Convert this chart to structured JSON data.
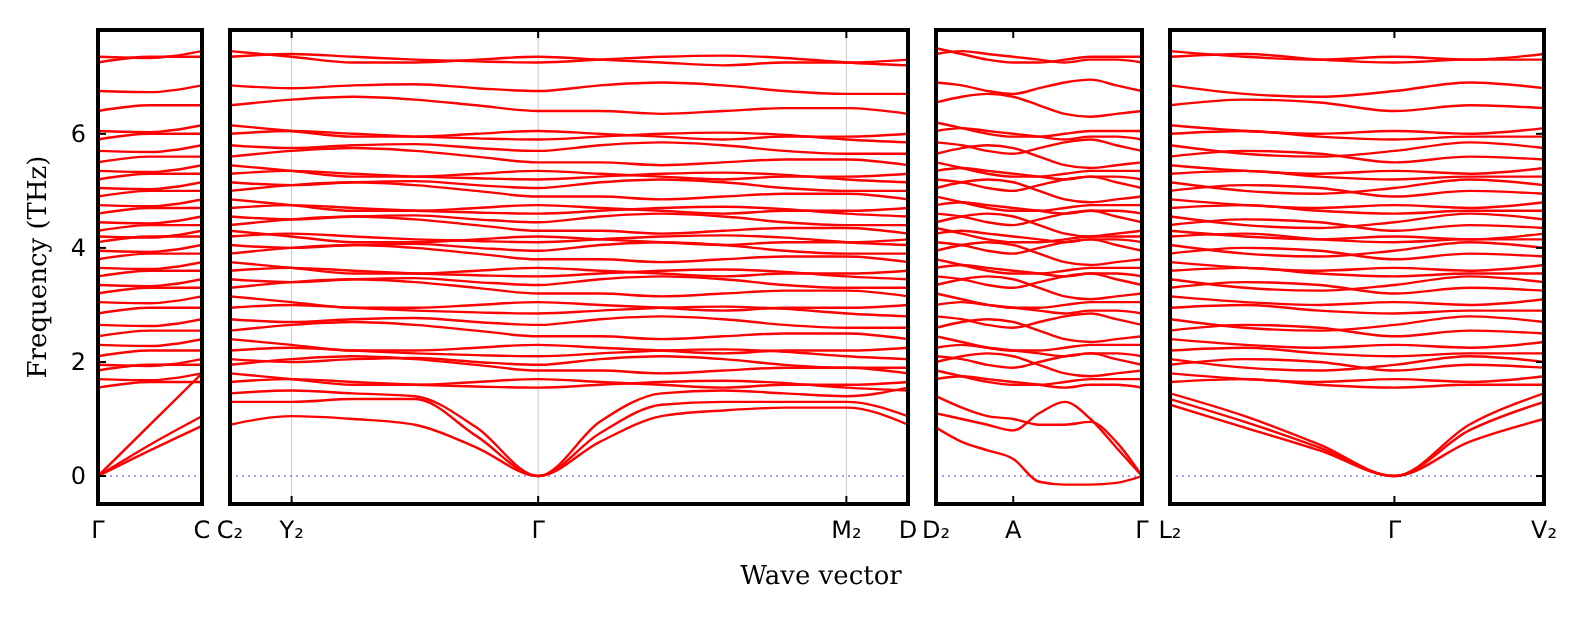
{
  "chart_data": [
    {
      "type": "line",
      "ylabel": "Frequency (THz)",
      "color": "#ff0000",
      "line_style": "solid",
      "ylim": [
        -0.49,
        7.82
      ],
      "yticks": [
        0,
        2,
        4,
        6
      ],
      "categories": [
        "Γ",
        null,
        "C"
      ],
      "ref_lines": [
        {
          "axis": "y",
          "value": 0,
          "color": "#8080ff",
          "line_style": "dotted"
        }
      ],
      "series": [
        {
          "values": [
            0,
            0.45,
            0.88
          ]
        },
        {
          "values": [
            0,
            0.55,
            1.05
          ]
        },
        {
          "values": [
            0,
            0.9,
            1.8
          ]
        },
        {
          "values": [
            1.55,
            1.65,
            1.65
          ]
        },
        {
          "values": [
            1.7,
            1.68,
            1.8
          ]
        },
        {
          "values": [
            1.85,
            1.95,
            1.95
          ]
        },
        {
          "values": [
            1.95,
            1.93,
            2.05
          ]
        },
        {
          "values": [
            2.1,
            2.2,
            2.2
          ]
        },
        {
          "values": [
            2.3,
            2.28,
            2.4
          ]
        },
        {
          "values": [
            2.45,
            2.55,
            2.55
          ]
        },
        {
          "values": [
            2.65,
            2.63,
            2.75
          ]
        },
        {
          "values": [
            2.85,
            2.95,
            2.95
          ]
        },
        {
          "values": [
            3.05,
            3.03,
            3.15
          ]
        },
        {
          "values": [
            3.2,
            3.3,
            3.3
          ]
        },
        {
          "values": [
            3.35,
            3.33,
            3.45
          ]
        },
        {
          "values": [
            3.5,
            3.6,
            3.6
          ]
        },
        {
          "values": [
            3.65,
            3.63,
            3.75
          ]
        },
        {
          "values": [
            3.8,
            3.9,
            3.9
          ]
        },
        {
          "values": [
            3.95,
            3.93,
            4.05
          ]
        },
        {
          "values": [
            4.1,
            4.2,
            4.2
          ]
        },
        {
          "values": [
            4.2,
            4.18,
            4.3
          ]
        },
        {
          "values": [
            4.3,
            4.4,
            4.4
          ]
        },
        {
          "values": [
            4.45,
            4.43,
            4.55
          ]
        },
        {
          "values": [
            4.6,
            4.7,
            4.7
          ]
        },
        {
          "values": [
            4.75,
            4.73,
            4.85
          ]
        },
        {
          "values": [
            4.9,
            5.0,
            5.0
          ]
        },
        {
          "values": [
            5.05,
            5.03,
            5.15
          ]
        },
        {
          "values": [
            5.2,
            5.3,
            5.3
          ]
        },
        {
          "values": [
            5.35,
            5.33,
            5.45
          ]
        },
        {
          "values": [
            5.5,
            5.6,
            5.6
          ]
        },
        {
          "values": [
            5.7,
            5.68,
            5.8
          ]
        },
        {
          "values": [
            5.9,
            6.0,
            6.0
          ]
        },
        {
          "values": [
            6.05,
            6.03,
            6.15
          ]
        },
        {
          "values": [
            6.4,
            6.5,
            6.5
          ]
        },
        {
          "values": [
            6.75,
            6.73,
            6.85
          ]
        },
        {
          "values": [
            7.25,
            7.35,
            7.35
          ]
        },
        {
          "values": [
            7.35,
            7.33,
            7.45
          ]
        }
      ]
    },
    {
      "type": "line",
      "xlabel": "Wave vector",
      "color": "#ff0000",
      "line_style": "solid",
      "grid": "x",
      "tick_labels": "x",
      "ylim": [
        -0.49,
        7.82
      ],
      "yticks": [
        0,
        2,
        4,
        6
      ],
      "categories": [
        "C₂",
        "Y₂",
        null,
        null,
        null,
        "Γ",
        null,
        null,
        null,
        null,
        "M₂",
        "D"
      ],
      "ref_lines": [
        {
          "axis": "y",
          "value": 0,
          "color": "#8080ff",
          "line_style": "dotted"
        }
      ],
      "series": [
        {
          "values": [
            0.9,
            1.05,
            1.0,
            0.9,
            0.5,
            0,
            0.6,
            1.05,
            1.15,
            1.2,
            1.2,
            0.9
          ]
        },
        {
          "values": [
            1.3,
            1.3,
            1.35,
            1.35,
            0.7,
            0,
            0.75,
            1.25,
            1.3,
            1.3,
            1.3,
            1.05
          ]
        },
        {
          "values": [
            1.45,
            1.5,
            1.45,
            1.4,
            0.85,
            0,
            0.95,
            1.45,
            1.5,
            1.45,
            1.4,
            1.55
          ]
        },
        {
          "values": [
            1.65,
            1.7,
            1.65,
            1.6,
            1.57,
            1.55,
            1.6,
            1.65,
            1.67,
            1.63,
            1.55,
            1.5
          ]
        },
        {
          "values": [
            1.8,
            1.7,
            1.6,
            1.6,
            1.65,
            1.7,
            1.65,
            1.6,
            1.55,
            1.6,
            1.6,
            1.65
          ]
        },
        {
          "values": [
            1.95,
            2.05,
            2.1,
            2.05,
            1.95,
            1.85,
            1.85,
            1.8,
            1.85,
            1.9,
            1.9,
            1.8
          ]
        },
        {
          "values": [
            2.05,
            2.0,
            2.05,
            2.07,
            2.0,
            1.95,
            2.05,
            2.1,
            2.05,
            1.95,
            1.9,
            1.9
          ]
        },
        {
          "values": [
            2.2,
            2.25,
            2.2,
            2.15,
            2.12,
            2.1,
            2.15,
            2.2,
            2.22,
            2.18,
            2.1,
            2.05
          ]
        },
        {
          "values": [
            2.4,
            2.3,
            2.2,
            2.2,
            2.25,
            2.3,
            2.25,
            2.2,
            2.15,
            2.2,
            2.2,
            2.25
          ]
        },
        {
          "values": [
            2.55,
            2.65,
            2.7,
            2.65,
            2.55,
            2.45,
            2.45,
            2.4,
            2.45,
            2.5,
            2.5,
            2.4
          ]
        },
        {
          "values": [
            2.75,
            2.7,
            2.75,
            2.77,
            2.7,
            2.65,
            2.75,
            2.8,
            2.75,
            2.65,
            2.6,
            2.6
          ]
        },
        {
          "values": [
            2.95,
            3.0,
            2.95,
            2.9,
            2.87,
            2.85,
            2.9,
            2.95,
            2.97,
            2.93,
            2.85,
            2.8
          ]
        },
        {
          "values": [
            3.15,
            3.05,
            2.95,
            2.95,
            3.0,
            3.05,
            3.0,
            2.95,
            2.9,
            2.95,
            2.95,
            3.0
          ]
        },
        {
          "values": [
            3.3,
            3.4,
            3.45,
            3.4,
            3.3,
            3.2,
            3.2,
            3.15,
            3.2,
            3.25,
            3.25,
            3.15
          ]
        },
        {
          "values": [
            3.45,
            3.4,
            3.45,
            3.47,
            3.4,
            3.35,
            3.45,
            3.5,
            3.45,
            3.35,
            3.3,
            3.3
          ]
        },
        {
          "values": [
            3.6,
            3.65,
            3.6,
            3.55,
            3.52,
            3.5,
            3.55,
            3.6,
            3.62,
            3.58,
            3.5,
            3.45
          ]
        },
        {
          "values": [
            3.75,
            3.65,
            3.55,
            3.55,
            3.6,
            3.65,
            3.6,
            3.55,
            3.5,
            3.55,
            3.55,
            3.6
          ]
        },
        {
          "values": [
            3.9,
            4.0,
            4.05,
            4.0,
            3.9,
            3.8,
            3.8,
            3.75,
            3.8,
            3.85,
            3.85,
            3.75
          ]
        },
        {
          "values": [
            4.05,
            4.0,
            4.05,
            4.07,
            4.0,
            3.95,
            4.05,
            4.1,
            4.05,
            3.95,
            3.9,
            3.9
          ]
        },
        {
          "values": [
            4.2,
            4.25,
            4.2,
            4.15,
            4.12,
            4.1,
            4.15,
            4.2,
            4.22,
            4.18,
            4.1,
            4.05
          ]
        },
        {
          "values": [
            4.3,
            4.2,
            4.1,
            4.1,
            4.15,
            4.2,
            4.15,
            4.1,
            4.05,
            4.1,
            4.1,
            4.15
          ]
        },
        {
          "values": [
            4.4,
            4.5,
            4.55,
            4.5,
            4.4,
            4.3,
            4.3,
            4.25,
            4.3,
            4.35,
            4.35,
            4.25
          ]
        },
        {
          "values": [
            4.55,
            4.5,
            4.55,
            4.57,
            4.5,
            4.45,
            4.55,
            4.6,
            4.55,
            4.45,
            4.4,
            4.4
          ]
        },
        {
          "values": [
            4.7,
            4.75,
            4.7,
            4.65,
            4.62,
            4.6,
            4.65,
            4.7,
            4.72,
            4.68,
            4.6,
            4.55
          ]
        },
        {
          "values": [
            4.85,
            4.75,
            4.65,
            4.65,
            4.7,
            4.75,
            4.7,
            4.65,
            4.6,
            4.65,
            4.65,
            4.7
          ]
        },
        {
          "values": [
            5.0,
            5.1,
            5.15,
            5.1,
            5.0,
            4.9,
            4.9,
            4.85,
            4.9,
            4.95,
            4.95,
            4.85
          ]
        },
        {
          "values": [
            5.15,
            5.1,
            5.15,
            5.17,
            5.1,
            5.05,
            5.15,
            5.2,
            5.15,
            5.05,
            5.0,
            5.0
          ]
        },
        {
          "values": [
            5.3,
            5.35,
            5.3,
            5.25,
            5.22,
            5.2,
            5.25,
            5.3,
            5.32,
            5.28,
            5.2,
            5.15
          ]
        },
        {
          "values": [
            5.45,
            5.35,
            5.25,
            5.25,
            5.3,
            5.35,
            5.3,
            5.25,
            5.2,
            5.25,
            5.25,
            5.3
          ]
        },
        {
          "values": [
            5.6,
            5.7,
            5.75,
            5.7,
            5.6,
            5.5,
            5.5,
            5.45,
            5.5,
            5.55,
            5.55,
            5.45
          ]
        },
        {
          "values": [
            5.8,
            5.75,
            5.8,
            5.82,
            5.75,
            5.7,
            5.8,
            5.85,
            5.8,
            5.7,
            5.65,
            5.65
          ]
        },
        {
          "values": [
            6.0,
            6.05,
            6.0,
            5.95,
            5.92,
            5.9,
            5.95,
            6.0,
            6.02,
            5.98,
            5.9,
            5.85
          ]
        },
        {
          "values": [
            6.15,
            6.05,
            5.95,
            5.95,
            6.0,
            6.05,
            6.0,
            5.95,
            5.9,
            5.95,
            5.95,
            6.0
          ]
        },
        {
          "values": [
            6.5,
            6.6,
            6.65,
            6.6,
            6.5,
            6.4,
            6.4,
            6.35,
            6.4,
            6.45,
            6.45,
            6.35
          ]
        },
        {
          "values": [
            6.85,
            6.8,
            6.85,
            6.87,
            6.8,
            6.75,
            6.85,
            6.9,
            6.85,
            6.75,
            6.7,
            6.7
          ]
        },
        {
          "values": [
            7.35,
            7.4,
            7.35,
            7.3,
            7.27,
            7.25,
            7.3,
            7.35,
            7.37,
            7.33,
            7.25,
            7.2
          ]
        },
        {
          "values": [
            7.45,
            7.35,
            7.25,
            7.25,
            7.3,
            7.35,
            7.3,
            7.25,
            7.2,
            7.25,
            7.25,
            7.3
          ]
        }
      ]
    },
    {
      "type": "line",
      "color": "#ff0000",
      "line_style": "solid",
      "tick_labels": "x",
      "ylim": [
        -0.49,
        7.82
      ],
      "yticks": [
        0,
        2,
        4,
        6
      ],
      "categories": [
        "D₂",
        null,
        null,
        "A",
        null,
        null,
        null,
        null,
        "Γ"
      ],
      "ref_lines": [
        {
          "axis": "y",
          "value": 0,
          "color": "#8080ff",
          "line_style": "dotted"
        }
      ],
      "series": [
        {
          "values": [
            0.85,
            0.6,
            0.45,
            0.3,
            -0.1,
            -0.15,
            -0.15,
            -0.12,
            0
          ]
        },
        {
          "values": [
            1.1,
            1.0,
            0.9,
            0.8,
            1.1,
            1.3,
            1.0,
            0.5,
            0
          ]
        },
        {
          "values": [
            1.4,
            1.2,
            1.05,
            1.0,
            0.9,
            0.9,
            0.95,
            0.6,
            0
          ]
        },
        {
          "values": [
            1.7,
            1.75,
            1.7,
            1.65,
            1.6,
            1.55,
            1.6,
            1.6,
            1.55
          ]
        },
        {
          "values": [
            1.85,
            1.75,
            1.65,
            1.6,
            1.6,
            1.65,
            1.7,
            1.7,
            1.7
          ]
        },
        {
          "values": [
            2.0,
            2.1,
            2.15,
            2.1,
            1.95,
            1.8,
            1.75,
            1.8,
            1.85
          ]
        },
        {
          "values": [
            2.1,
            2.05,
            1.95,
            1.9,
            2.0,
            2.1,
            2.15,
            2.05,
            1.95
          ]
        },
        {
          "values": [
            2.25,
            2.3,
            2.25,
            2.2,
            2.15,
            2.1,
            2.15,
            2.15,
            2.1
          ]
        },
        {
          "values": [
            2.45,
            2.35,
            2.25,
            2.2,
            2.2,
            2.25,
            2.3,
            2.3,
            2.3
          ]
        },
        {
          "values": [
            2.6,
            2.7,
            2.75,
            2.7,
            2.55,
            2.4,
            2.35,
            2.4,
            2.45
          ]
        },
        {
          "values": [
            2.8,
            2.75,
            2.65,
            2.6,
            2.7,
            2.8,
            2.85,
            2.75,
            2.65
          ]
        },
        {
          "values": [
            3.0,
            3.05,
            3.0,
            2.95,
            2.9,
            2.85,
            2.9,
            2.9,
            2.85
          ]
        },
        {
          "values": [
            3.2,
            3.1,
            3.0,
            2.95,
            2.95,
            3.0,
            3.05,
            3.05,
            3.05
          ]
        },
        {
          "values": [
            3.35,
            3.45,
            3.5,
            3.45,
            3.3,
            3.15,
            3.1,
            3.15,
            3.2
          ]
        },
        {
          "values": [
            3.5,
            3.45,
            3.35,
            3.3,
            3.4,
            3.5,
            3.55,
            3.45,
            3.35
          ]
        },
        {
          "values": [
            3.65,
            3.7,
            3.65,
            3.6,
            3.55,
            3.5,
            3.55,
            3.55,
            3.5
          ]
        },
        {
          "values": [
            3.8,
            3.7,
            3.6,
            3.55,
            3.55,
            3.6,
            3.65,
            3.65,
            3.65
          ]
        },
        {
          "values": [
            3.95,
            4.05,
            4.1,
            4.05,
            3.9,
            3.75,
            3.7,
            3.75,
            3.8
          ]
        },
        {
          "values": [
            4.1,
            4.05,
            3.95,
            3.9,
            4.0,
            4.1,
            4.15,
            4.05,
            3.95
          ]
        },
        {
          "values": [
            4.25,
            4.3,
            4.25,
            4.2,
            4.15,
            4.1,
            4.15,
            4.15,
            4.1
          ]
        },
        {
          "values": [
            4.35,
            4.25,
            4.15,
            4.1,
            4.1,
            4.15,
            4.2,
            4.2,
            4.2
          ]
        },
        {
          "values": [
            4.45,
            4.55,
            4.6,
            4.55,
            4.4,
            4.25,
            4.2,
            4.25,
            4.3
          ]
        },
        {
          "values": [
            4.6,
            4.55,
            4.45,
            4.4,
            4.5,
            4.6,
            4.65,
            4.55,
            4.45
          ]
        },
        {
          "values": [
            4.75,
            4.8,
            4.75,
            4.7,
            4.65,
            4.6,
            4.65,
            4.65,
            4.6
          ]
        },
        {
          "values": [
            4.9,
            4.8,
            4.7,
            4.65,
            4.65,
            4.7,
            4.75,
            4.75,
            4.75
          ]
        },
        {
          "values": [
            5.05,
            5.15,
            5.2,
            5.15,
            5.0,
            4.85,
            4.8,
            4.85,
            4.9
          ]
        },
        {
          "values": [
            5.2,
            5.15,
            5.05,
            5.0,
            5.1,
            5.2,
            5.25,
            5.15,
            5.05
          ]
        },
        {
          "values": [
            5.35,
            5.4,
            5.35,
            5.3,
            5.25,
            5.2,
            5.25,
            5.25,
            5.2
          ]
        },
        {
          "values": [
            5.5,
            5.4,
            5.3,
            5.25,
            5.25,
            5.3,
            5.35,
            5.35,
            5.35
          ]
        },
        {
          "values": [
            5.65,
            5.75,
            5.8,
            5.75,
            5.6,
            5.45,
            5.4,
            5.45,
            5.5
          ]
        },
        {
          "values": [
            5.85,
            5.8,
            5.7,
            5.65,
            5.75,
            5.85,
            5.9,
            5.8,
            5.7
          ]
        },
        {
          "values": [
            6.05,
            6.1,
            6.05,
            6.0,
            5.95,
            5.9,
            5.95,
            5.95,
            5.9
          ]
        },
        {
          "values": [
            6.2,
            6.1,
            6.0,
            5.95,
            5.95,
            6.0,
            6.05,
            6.05,
            6.05
          ]
        },
        {
          "values": [
            6.55,
            6.65,
            6.7,
            6.65,
            6.5,
            6.35,
            6.3,
            6.35,
            6.4
          ]
        },
        {
          "values": [
            6.9,
            6.85,
            6.75,
            6.7,
            6.8,
            6.9,
            6.95,
            6.85,
            6.75
          ]
        },
        {
          "values": [
            7.4,
            7.45,
            7.4,
            7.35,
            7.3,
            7.25,
            7.3,
            7.3,
            7.25
          ]
        },
        {
          "values": [
            7.5,
            7.4,
            7.3,
            7.25,
            7.25,
            7.3,
            7.35,
            7.35,
            7.35
          ]
        }
      ]
    },
    {
      "type": "line",
      "color": "#ff0000",
      "line_style": "solid",
      "tick_labels": "x",
      "ylim": [
        -0.49,
        7.82
      ],
      "yticks": [
        0,
        2,
        4,
        6
      ],
      "categories": [
        "L₂",
        null,
        null,
        "Γ",
        null,
        "V₂"
      ],
      "ref_lines": [
        {
          "axis": "y",
          "value": 0,
          "color": "#8080ff",
          "line_style": "dotted"
        }
      ],
      "series": [
        {
          "values": [
            1.25,
            0.85,
            0.45,
            0,
            0.9,
            1.45
          ]
        },
        {
          "values": [
            1.35,
            0.95,
            0.5,
            0,
            0.8,
            1.3
          ]
        },
        {
          "values": [
            1.45,
            1.05,
            0.55,
            0,
            0.6,
            1.0
          ]
        },
        {
          "values": [
            1.65,
            1.7,
            1.6,
            1.55,
            1.6,
            1.6
          ]
        },
        {
          "values": [
            1.8,
            1.7,
            1.65,
            1.7,
            1.65,
            1.75
          ]
        },
        {
          "values": [
            1.95,
            2.05,
            2.0,
            1.85,
            1.95,
            1.9
          ]
        },
        {
          "values": [
            2.05,
            1.9,
            1.85,
            1.95,
            2.1,
            2.0
          ]
        },
        {
          "values": [
            2.2,
            2.25,
            2.15,
            2.1,
            2.15,
            2.15
          ]
        },
        {
          "values": [
            2.4,
            2.3,
            2.25,
            2.3,
            2.25,
            2.35
          ]
        },
        {
          "values": [
            2.55,
            2.65,
            2.6,
            2.45,
            2.55,
            2.5
          ]
        },
        {
          "values": [
            2.75,
            2.6,
            2.55,
            2.65,
            2.8,
            2.7
          ]
        },
        {
          "values": [
            2.95,
            3.0,
            2.9,
            2.85,
            2.9,
            2.9
          ]
        },
        {
          "values": [
            3.15,
            3.05,
            3.0,
            3.05,
            3.0,
            3.1
          ]
        },
        {
          "values": [
            3.3,
            3.4,
            3.35,
            3.2,
            3.3,
            3.25
          ]
        },
        {
          "values": [
            3.45,
            3.3,
            3.25,
            3.35,
            3.5,
            3.4
          ]
        },
        {
          "values": [
            3.6,
            3.65,
            3.55,
            3.5,
            3.55,
            3.55
          ]
        },
        {
          "values": [
            3.75,
            3.65,
            3.6,
            3.65,
            3.6,
            3.7
          ]
        },
        {
          "values": [
            3.9,
            4.0,
            3.95,
            3.8,
            3.9,
            3.85
          ]
        },
        {
          "values": [
            4.05,
            3.9,
            3.85,
            3.95,
            4.1,
            4.0
          ]
        },
        {
          "values": [
            4.2,
            4.25,
            4.15,
            4.1,
            4.15,
            4.15
          ]
        },
        {
          "values": [
            4.3,
            4.2,
            4.15,
            4.2,
            4.15,
            4.25
          ]
        },
        {
          "values": [
            4.4,
            4.5,
            4.45,
            4.3,
            4.4,
            4.35
          ]
        },
        {
          "values": [
            4.55,
            4.4,
            4.35,
            4.45,
            4.6,
            4.5
          ]
        },
        {
          "values": [
            4.7,
            4.75,
            4.65,
            4.6,
            4.65,
            4.65
          ]
        },
        {
          "values": [
            4.85,
            4.75,
            4.7,
            4.75,
            4.7,
            4.8
          ]
        },
        {
          "values": [
            5.0,
            5.1,
            5.05,
            4.9,
            5.0,
            4.95
          ]
        },
        {
          "values": [
            5.15,
            5.0,
            4.95,
            5.05,
            5.2,
            5.1
          ]
        },
        {
          "values": [
            5.3,
            5.35,
            5.25,
            5.2,
            5.25,
            5.25
          ]
        },
        {
          "values": [
            5.45,
            5.35,
            5.3,
            5.35,
            5.3,
            5.4
          ]
        },
        {
          "values": [
            5.6,
            5.7,
            5.65,
            5.5,
            5.6,
            5.55
          ]
        },
        {
          "values": [
            5.8,
            5.65,
            5.6,
            5.7,
            5.85,
            5.75
          ]
        },
        {
          "values": [
            6.0,
            6.05,
            5.95,
            5.9,
            5.95,
            5.95
          ]
        },
        {
          "values": [
            6.15,
            6.05,
            6.0,
            6.05,
            6.0,
            6.1
          ]
        },
        {
          "values": [
            6.5,
            6.6,
            6.55,
            6.4,
            6.5,
            6.45
          ]
        },
        {
          "values": [
            6.85,
            6.7,
            6.65,
            6.75,
            6.9,
            6.8
          ]
        },
        {
          "values": [
            7.35,
            7.4,
            7.3,
            7.25,
            7.3,
            7.3
          ]
        },
        {
          "values": [
            7.45,
            7.35,
            7.3,
            7.35,
            7.3,
            7.4
          ]
        }
      ]
    }
  ]
}
